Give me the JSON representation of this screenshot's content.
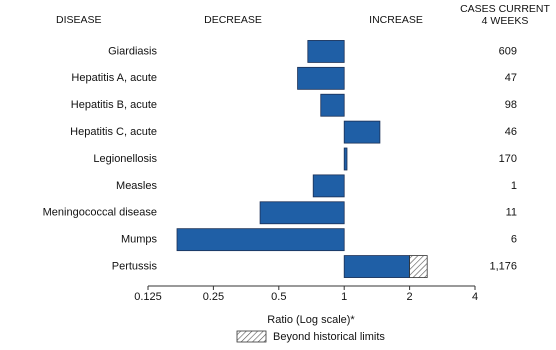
{
  "chart_data": {
    "type": "bar",
    "orientation": "horizontal",
    "headers": {
      "disease": "DISEASE",
      "decrease": "DECREASE",
      "increase": "INCREASE"
    },
    "cases_title": [
      "CASES CURRENT",
      "4 WEEKS"
    ],
    "categories": [
      "Giardiasis",
      "Hepatitis A, acute",
      "Hepatitis B, acute",
      "Hepatitis C, acute",
      "Legionellosis",
      "Measles",
      "Meningococcal disease",
      "Mumps",
      "Pertussis"
    ],
    "series": [
      {
        "color": "#1f5fa6",
        "values": [
          0.68,
          0.61,
          0.78,
          1.46,
          1.03,
          0.72,
          0.41,
          0.17,
          2.41
        ]
      }
    ],
    "historical_limits": [
      null,
      null,
      null,
      null,
      null,
      null,
      null,
      null,
      2.0
    ],
    "cases": {
      "values": [
        609,
        47,
        98,
        46,
        170,
        1,
        11,
        6,
        1176
      ],
      "value_labels": [
        null,
        null,
        null,
        null,
        null,
        null,
        null,
        null,
        "1,176"
      ]
    },
    "x_label": "Ratio (Log scale)*",
    "log_scale": true,
    "xlim": [
      0.125,
      4
    ],
    "xticks": [
      0.125,
      0.25,
      0.5,
      1,
      2,
      4
    ],
    "legend": {
      "label": "Beyond historical limits"
    }
  }
}
